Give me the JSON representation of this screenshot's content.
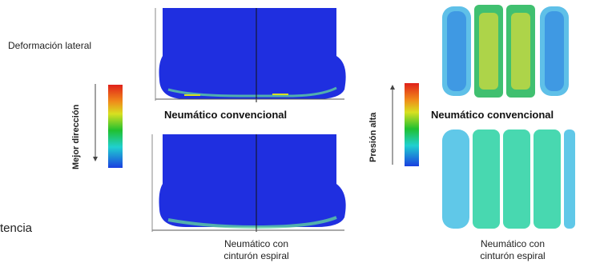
{
  "labels": {
    "lateral_deformation": "Deformación lateral",
    "better_direction": "Mejor dirección",
    "high_pressure": "Presión alta",
    "conventional_left": "Neumático convencional",
    "conventional_right": "Neumático convencional",
    "spiral_left": "Neumático con\ncinturón espiral",
    "spiral_right": "Neumático con\ncinturón espiral",
    "truncated_text": "tencia"
  },
  "colors": {
    "tire_blue": "#1f2fe0",
    "scale_top": "#e0201a",
    "scale_mid_yellow": "#d8e020",
    "scale_mid_green": "#20c030",
    "scale_mid_cyan": "#20d0d0",
    "scale_bottom": "#1a40e0"
  }
}
